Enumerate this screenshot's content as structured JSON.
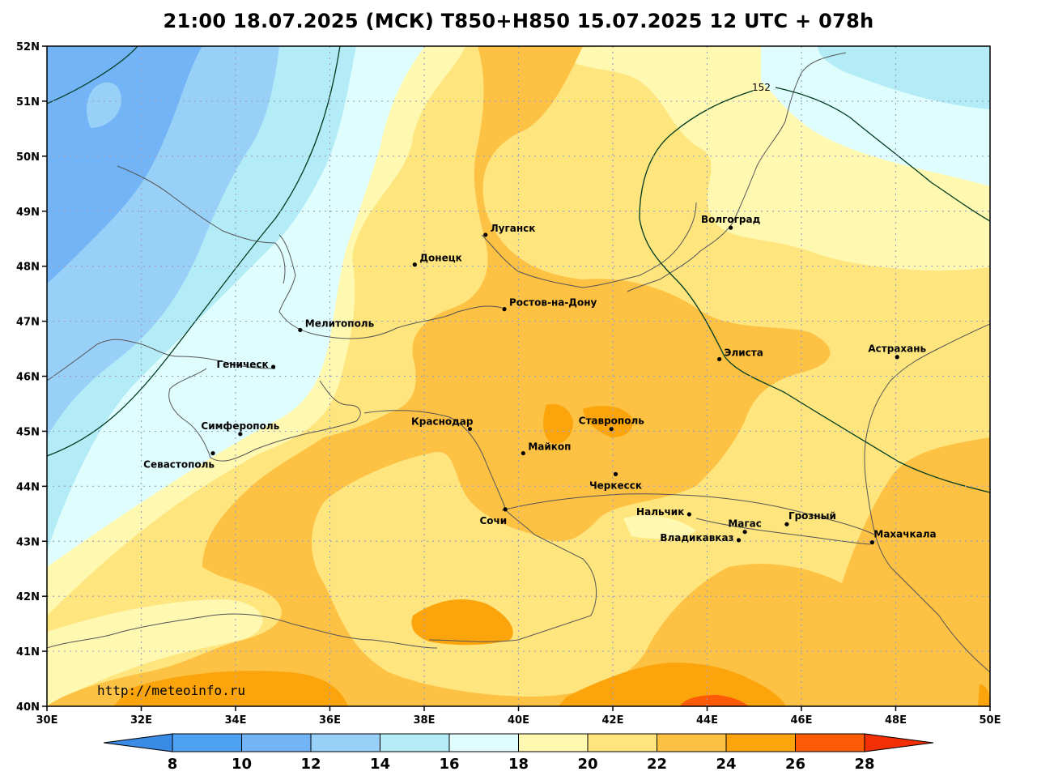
{
  "title": "21:00 18.07.2025 (МСК) T850+H850 15.07.2025 12 UTC + 078h",
  "credit": "http://meteoinfo.ru",
  "axes": {
    "lon_min": 30,
    "lon_max": 50,
    "lat_min": 40,
    "lat_max": 52,
    "x_ticks": [
      {
        "value": 30,
        "label": "30E"
      },
      {
        "value": 32,
        "label": "32E"
      },
      {
        "value": 34,
        "label": "34E"
      },
      {
        "value": 36,
        "label": "36E"
      },
      {
        "value": 38,
        "label": "38E"
      },
      {
        "value": 40,
        "label": "40E"
      },
      {
        "value": 42,
        "label": "42E"
      },
      {
        "value": 44,
        "label": "44E"
      },
      {
        "value": 46,
        "label": "46E"
      },
      {
        "value": 48,
        "label": "48E"
      },
      {
        "value": 50,
        "label": "50E"
      }
    ],
    "y_ticks": [
      {
        "value": 52,
        "label": "52N"
      },
      {
        "value": 51,
        "label": "51N"
      },
      {
        "value": 50,
        "label": "50N"
      },
      {
        "value": 49,
        "label": "49N"
      },
      {
        "value": 48,
        "label": "48N"
      },
      {
        "value": 47,
        "label": "47N"
      },
      {
        "value": 46,
        "label": "46N"
      },
      {
        "value": 45,
        "label": "45N"
      },
      {
        "value": 44,
        "label": "44N"
      },
      {
        "value": 43,
        "label": "43N"
      },
      {
        "value": 42,
        "label": "42N"
      },
      {
        "value": 41,
        "label": "41N"
      },
      {
        "value": 40,
        "label": "40N"
      }
    ],
    "grid": "dotted"
  },
  "cities": [
    {
      "name": "Луганск",
      "lon": 39.3,
      "lat": 48.57,
      "anchor": "right"
    },
    {
      "name": "Донецк",
      "lon": 37.8,
      "lat": 48.03,
      "anchor": "right"
    },
    {
      "name": "Волгоград",
      "lon": 44.5,
      "lat": 48.7,
      "anchor": "above"
    },
    {
      "name": "Ростов-на-Дону",
      "lon": 39.7,
      "lat": 47.22,
      "anchor": "right"
    },
    {
      "name": "Мелитополь",
      "lon": 35.37,
      "lat": 46.84,
      "anchor": "right"
    },
    {
      "name": "Геническ",
      "lon": 34.8,
      "lat": 46.17,
      "anchor": "left"
    },
    {
      "name": "Элиста",
      "lon": 44.26,
      "lat": 46.31,
      "anchor": "right"
    },
    {
      "name": "Астрахань",
      "lon": 48.03,
      "lat": 46.35,
      "anchor": "above"
    },
    {
      "name": "Симферополь",
      "lon": 34.1,
      "lat": 44.95,
      "anchor": "above"
    },
    {
      "name": "Севастополь",
      "lon": 33.52,
      "lat": 44.6,
      "anchor": "below-left"
    },
    {
      "name": "Краснодар",
      "lon": 38.97,
      "lat": 45.04,
      "anchor": "above-left"
    },
    {
      "name": "Ставрополь",
      "lon": 41.97,
      "lat": 45.04,
      "anchor": "above"
    },
    {
      "name": "Майкоп",
      "lon": 40.1,
      "lat": 44.6,
      "anchor": "right"
    },
    {
      "name": "Черкесск",
      "lon": 42.06,
      "lat": 44.22,
      "anchor": "below"
    },
    {
      "name": "Сочи",
      "lon": 39.72,
      "lat": 43.58,
      "anchor": "below-left"
    },
    {
      "name": "Нальчик",
      "lon": 43.62,
      "lat": 43.49,
      "anchor": "left"
    },
    {
      "name": "Грозный",
      "lon": 45.69,
      "lat": 43.31,
      "anchor": "above-right"
    },
    {
      "name": "Магас",
      "lon": 44.8,
      "lat": 43.17,
      "anchor": "above"
    },
    {
      "name": "Владикавказ",
      "lon": 44.67,
      "lat": 43.02,
      "anchor": "left"
    },
    {
      "name": "Махачкала",
      "lon": 47.5,
      "lat": 42.98,
      "anchor": "above-right"
    }
  ],
  "contour_label": "152",
  "colorbar": {
    "ticks": [
      "8",
      "10",
      "12",
      "14",
      "16",
      "18",
      "20",
      "22",
      "24",
      "26",
      "28"
    ],
    "colors": {
      "below_8": "#3a8be6",
      "8_10": "#4fa2f2",
      "10_12": "#72b4f5",
      "12_14": "#98d0f8",
      "14_16": "#b3ecf6",
      "16_18": "#e0fdfe",
      "18_20": "#fff8b0",
      "20_22": "#fee57e",
      "22_24": "#fdc143",
      "24_26": "#fca40c",
      "26_28": "#fd5a06",
      "above_28": "#f32f05"
    }
  }
}
